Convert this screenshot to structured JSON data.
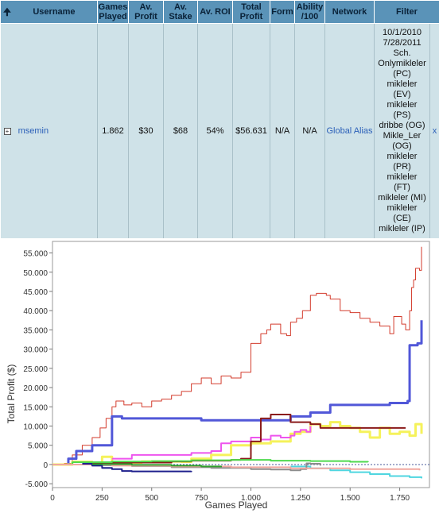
{
  "table": {
    "headers": {
      "sort_icon": "up-arrow-icon",
      "username": "Username",
      "games_played": "Games Played",
      "av_profit": "Av. Profit",
      "av_stake": "Av. Stake",
      "av_roi": "Av. ROI",
      "total_profit": "Total Profit",
      "form": "Form",
      "ability": "Ability /100",
      "network": "Network",
      "filter": "Filter"
    },
    "row": {
      "expand_icon": "plus-box-icon",
      "username": "msemin",
      "games_played": "1.862",
      "av_profit": "$30",
      "av_stake": "$68",
      "av_roi": "54%",
      "total_profit": "$56.631",
      "form": "N/A",
      "ability": "N/A",
      "network": "Global Alias",
      "close": "x",
      "filter_lines": [
        "10/1/2010",
        "7/28/2011",
        "Sch.",
        "Onlymikleler",
        "(PC)",
        "mikleler",
        "(EV)",
        "mikleler",
        "(PS)",
        "dribbe (OG)",
        "Mikle_Ler",
        "(OG)",
        "mikleler",
        "(PR)",
        "mikleler",
        "(FT)",
        "mikleler (MI)",
        "mikleler",
        "(CE)",
        "mikleler (IP)"
      ]
    }
  },
  "chart_data": {
    "type": "line",
    "xlabel": "Games Played",
    "ylabel": "Total Profit ($)",
    "xlim": [
      0,
      1900
    ],
    "ylim": [
      -6000,
      58000
    ],
    "x_ticks": [
      0,
      250,
      500,
      750,
      1000,
      1250,
      1500,
      1750
    ],
    "x_tick_labels": [
      "0",
      "250",
      "500",
      "750",
      "1.000",
      "1.250",
      "1.500",
      "1.750"
    ],
    "y_ticks": [
      -5000,
      0,
      5000,
      10000,
      15000,
      20000,
      25000,
      30000,
      35000,
      40000,
      45000,
      50000,
      55000
    ],
    "y_tick_labels": [
      "-5.000",
      "0",
      "5.000",
      "10.000",
      "15.000",
      "20.000",
      "25.000",
      "30.000",
      "35.000",
      "40.000",
      "45.000",
      "50.000",
      "55.000"
    ],
    "zero_line": true,
    "series": [
      {
        "color": "#d33b2c",
        "width": 1,
        "points": [
          [
            0,
            0
          ],
          [
            60,
            300
          ],
          [
            100,
            2500
          ],
          [
            150,
            5000
          ],
          [
            200,
            7000
          ],
          [
            240,
            9500
          ],
          [
            270,
            12000
          ],
          [
            300,
            15000
          ],
          [
            320,
            16500
          ],
          [
            360,
            15500
          ],
          [
            400,
            16000
          ],
          [
            450,
            15000
          ],
          [
            500,
            16500
          ],
          [
            550,
            17000
          ],
          [
            600,
            18000
          ],
          [
            650,
            19000
          ],
          [
            700,
            21000
          ],
          [
            750,
            22500
          ],
          [
            800,
            21000
          ],
          [
            850,
            23000
          ],
          [
            900,
            22500
          ],
          [
            950,
            24000
          ],
          [
            1000,
            31500
          ],
          [
            1050,
            34000
          ],
          [
            1080,
            35000
          ],
          [
            1100,
            36500
          ],
          [
            1150,
            34000
          ],
          [
            1180,
            33500
          ],
          [
            1200,
            37000
          ],
          [
            1230,
            38000
          ],
          [
            1260,
            40000
          ],
          [
            1300,
            44000
          ],
          [
            1330,
            44500
          ],
          [
            1380,
            44000
          ],
          [
            1400,
            43000
          ],
          [
            1450,
            40000
          ],
          [
            1500,
            39500
          ],
          [
            1550,
            38000
          ],
          [
            1600,
            37000
          ],
          [
            1650,
            36000
          ],
          [
            1700,
            34000
          ],
          [
            1720,
            38500
          ],
          [
            1760,
            36500
          ],
          [
            1780,
            35000
          ],
          [
            1800,
            40000
          ],
          [
            1810,
            46000
          ],
          [
            1820,
            48000
          ],
          [
            1830,
            51000
          ],
          [
            1850,
            50500
          ],
          [
            1860,
            56600
          ]
        ]
      },
      {
        "color": "#5157d8",
        "width": 3,
        "points": [
          [
            0,
            0
          ],
          [
            80,
            1500
          ],
          [
            120,
            3500
          ],
          [
            200,
            5000
          ],
          [
            300,
            12500
          ],
          [
            350,
            12000
          ],
          [
            500,
            12000
          ],
          [
            750,
            11500
          ],
          [
            1000,
            11500
          ],
          [
            1200,
            12500
          ],
          [
            1300,
            13500
          ],
          [
            1400,
            15500
          ],
          [
            1500,
            15500
          ],
          [
            1600,
            15500
          ],
          [
            1700,
            16000
          ],
          [
            1790,
            16500
          ],
          [
            1800,
            31000
          ],
          [
            1840,
            31500
          ],
          [
            1860,
            37500
          ]
        ]
      },
      {
        "color": "#f5f25b",
        "width": 3,
        "points": [
          [
            0,
            0
          ],
          [
            100,
            700
          ],
          [
            200,
            500
          ],
          [
            250,
            2000
          ],
          [
            300,
            500
          ],
          [
            450,
            800
          ],
          [
            650,
            700
          ],
          [
            700,
            1500
          ],
          [
            800,
            2500
          ],
          [
            900,
            5000
          ],
          [
            1000,
            5500
          ],
          [
            1050,
            5500
          ],
          [
            1100,
            6000
          ],
          [
            1200,
            8000
          ],
          [
            1250,
            8500
          ],
          [
            1300,
            10500
          ],
          [
            1350,
            10000
          ],
          [
            1400,
            11000
          ],
          [
            1450,
            10000
          ],
          [
            1500,
            9500
          ],
          [
            1550,
            8500
          ],
          [
            1600,
            7000
          ],
          [
            1650,
            9500
          ],
          [
            1700,
            8000
          ],
          [
            1750,
            8500
          ],
          [
            1800,
            7500
          ],
          [
            1830,
            10500
          ],
          [
            1860,
            8000
          ]
        ]
      },
      {
        "color": "#ee55ee",
        "width": 2,
        "points": [
          [
            300,
            1500
          ],
          [
            400,
            2500
          ],
          [
            500,
            2500
          ],
          [
            600,
            2500
          ],
          [
            700,
            3000
          ],
          [
            800,
            3500
          ],
          [
            850,
            5500
          ],
          [
            900,
            6000
          ],
          [
            1000,
            7000
          ],
          [
            1050,
            6500
          ],
          [
            1100,
            7500
          ],
          [
            1150,
            7000
          ],
          [
            1200,
            7500
          ],
          [
            1220,
            8500
          ],
          [
            1250,
            9000
          ],
          [
            1280,
            8500
          ],
          [
            1300,
            10000
          ]
        ]
      },
      {
        "color": "#8b1a1a",
        "width": 2,
        "points": [
          [
            200,
            500
          ],
          [
            600,
            800
          ],
          [
            700,
            1000
          ],
          [
            900,
            1200
          ],
          [
            950,
            1500
          ],
          [
            1000,
            6000
          ],
          [
            1050,
            12000
          ],
          [
            1100,
            13000
          ],
          [
            1200,
            11000
          ],
          [
            1300,
            10500
          ],
          [
            1350,
            9500
          ],
          [
            1400,
            9500
          ],
          [
            1500,
            9500
          ],
          [
            1600,
            9500
          ],
          [
            1700,
            9500
          ],
          [
            1780,
            9500
          ]
        ]
      },
      {
        "color": "#4ed94e",
        "width": 2,
        "points": [
          [
            0,
            0
          ],
          [
            100,
            600
          ],
          [
            300,
            800
          ],
          [
            500,
            900
          ],
          [
            700,
            1100
          ],
          [
            900,
            1200
          ],
          [
            1100,
            1000
          ],
          [
            1300,
            900
          ],
          [
            1500,
            700
          ],
          [
            1590,
            600
          ]
        ]
      },
      {
        "color": "#4fd6e0",
        "width": 2,
        "points": [
          [
            1200,
            -500
          ],
          [
            1300,
            -1000
          ],
          [
            1400,
            -1500
          ],
          [
            1500,
            -2000
          ],
          [
            1600,
            -2500
          ],
          [
            1700,
            -3000
          ],
          [
            1800,
            -3300
          ],
          [
            1860,
            -3600
          ]
        ]
      },
      {
        "color": "#8c8c8c",
        "width": 2,
        "points": [
          [
            0,
            0
          ],
          [
            200,
            -200
          ],
          [
            400,
            -400
          ],
          [
            600,
            -700
          ],
          [
            800,
            -900
          ],
          [
            1000,
            -1200
          ],
          [
            1100,
            -1300
          ],
          [
            1200,
            -1500
          ],
          [
            1250,
            -1200
          ],
          [
            1280,
            300
          ],
          [
            1300,
            200
          ],
          [
            1350,
            -300
          ]
        ]
      },
      {
        "color": "#f0a8a0",
        "width": 2,
        "points": [
          [
            0,
            0
          ],
          [
            300,
            -300
          ],
          [
            600,
            -500
          ],
          [
            900,
            -700
          ],
          [
            1200,
            -1000
          ],
          [
            1500,
            -1200
          ],
          [
            1850,
            -1500
          ]
        ]
      },
      {
        "color": "#1d1f8c",
        "width": 2,
        "points": [
          [
            150,
            200
          ],
          [
            200,
            -300
          ],
          [
            250,
            -900
          ],
          [
            300,
            -1200
          ],
          [
            350,
            -1700
          ],
          [
            400,
            -1800
          ],
          [
            500,
            -1800
          ],
          [
            600,
            -1800
          ],
          [
            700,
            -1700
          ]
        ]
      },
      {
        "color": "#2ea12e",
        "width": 2,
        "points": [
          [
            200,
            100
          ],
          [
            400,
            -100
          ],
          [
            600,
            -300
          ],
          [
            750,
            -500
          ],
          [
            850,
            -700
          ]
        ]
      }
    ]
  }
}
